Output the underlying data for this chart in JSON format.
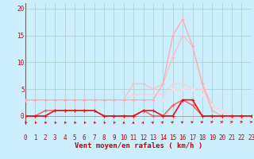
{
  "x": [
    0,
    1,
    2,
    3,
    4,
    5,
    6,
    7,
    8,
    9,
    10,
    11,
    12,
    13,
    14,
    15,
    16,
    17,
    18,
    19,
    20,
    21,
    22,
    23
  ],
  "series": [
    {
      "color": "#ee1111",
      "linewidth": 1.2,
      "marker": "+",
      "markersize": 3.5,
      "zorder": 5,
      "y": [
        0,
        0,
        0,
        1,
        1,
        1,
        1,
        1,
        0,
        0,
        0,
        0,
        1,
        1,
        0,
        0,
        3,
        3,
        0,
        0,
        0,
        0,
        0,
        0
      ]
    },
    {
      "color": "#ff5555",
      "linewidth": 1.0,
      "marker": "+",
      "markersize": 3,
      "zorder": 4,
      "y": [
        0,
        0,
        1,
        1,
        1,
        1,
        1,
        1,
        0,
        0,
        0,
        0,
        1,
        0,
        0,
        2,
        3,
        2,
        0,
        0,
        0,
        0,
        0,
        0
      ]
    },
    {
      "color": "#ffaaaa",
      "linewidth": 0.9,
      "marker": "+",
      "markersize": 3,
      "zorder": 3,
      "y": [
        3,
        3,
        3,
        3,
        3,
        3,
        3,
        3,
        3,
        3,
        3,
        3,
        3,
        3,
        6,
        15,
        18,
        13,
        6,
        1,
        0,
        0,
        0,
        0
      ]
    },
    {
      "color": "#ffbbbb",
      "linewidth": 0.8,
      "marker": "+",
      "markersize": 2.5,
      "zorder": 2,
      "y": [
        3,
        3,
        3,
        3,
        3,
        3,
        3,
        3,
        3,
        3,
        3,
        6,
        6,
        5,
        6,
        11,
        15,
        13,
        6,
        2,
        1,
        0,
        0,
        0
      ]
    },
    {
      "color": "#ffcccc",
      "linewidth": 0.7,
      "marker": "+",
      "markersize": 2.5,
      "zorder": 2,
      "y": [
        3,
        3,
        3,
        3,
        3,
        3,
        3,
        3,
        3,
        3,
        3,
        4,
        4,
        4,
        4,
        6,
        6,
        5,
        5,
        2,
        1,
        0,
        0,
        0
      ]
    },
    {
      "color": "#ffdddd",
      "linewidth": 0.7,
      "marker": "+",
      "markersize": 2.5,
      "zorder": 2,
      "y": [
        3,
        3,
        3,
        3,
        3,
        3,
        3,
        3,
        3,
        3,
        3,
        3,
        3,
        3,
        3,
        5,
        5,
        5,
        4,
        2,
        1,
        0,
        0,
        0
      ]
    }
  ],
  "xlabel": "Vent moyen/en rafales ( km/h )",
  "xlabel_color": "#cc0000",
  "xlabel_fontsize": 6.5,
  "ylabel_ticks": [
    0,
    5,
    10,
    15,
    20
  ],
  "xlim": [
    0,
    23
  ],
  "ylim": [
    -1.5,
    21
  ],
  "bg_color": "#cceeff",
  "grid_color": "#aacccc",
  "tick_color": "#cc0000",
  "tick_fontsize": 5.5,
  "arrow_color": "#cc0000",
  "left_spine_color": "#666666"
}
